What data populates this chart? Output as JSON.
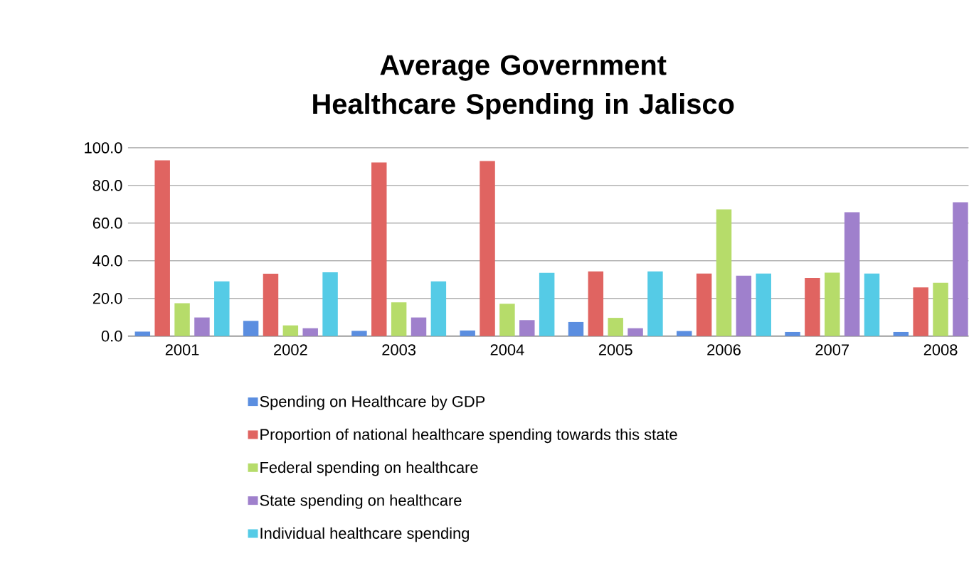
{
  "chart_data": {
    "type": "bar",
    "title": "Average Government Healthcare Spending in Jalisco",
    "categories": [
      "2001",
      "2002",
      "2003",
      "2004",
      "2005",
      "2006",
      "2007",
      "2008"
    ],
    "series": [
      {
        "name": "Spending on Healthcare by GDP",
        "color": "#5b8ee0",
        "values": [
          2.4,
          8.1,
          2.8,
          3.0,
          7.5,
          2.7,
          2.2,
          2.2
        ]
      },
      {
        "name": "Proportion of national healthcare spending towards this state",
        "color": "#e06461",
        "values": [
          93.4,
          33.1,
          92.2,
          93.0,
          34.4,
          33.2,
          30.9,
          25.9
        ]
      },
      {
        "name": "Federal spending on healthcare",
        "color": "#b6dc6a",
        "values": [
          17.5,
          5.7,
          17.9,
          17.2,
          9.7,
          67.3,
          33.7,
          28.3
        ]
      },
      {
        "name": "State spending on healthcare",
        "color": "#9f80cc",
        "values": [
          9.9,
          4.2,
          9.9,
          8.5,
          4.2,
          32.1,
          65.8,
          71.1
        ]
      },
      {
        "name": "Individual healthcare spending",
        "color": "#55cbe6",
        "values": [
          29.1,
          33.9,
          29.1,
          33.6,
          34.4,
          33.2,
          33.2,
          null
        ]
      }
    ],
    "ylim": [
      0,
      100
    ],
    "yticks": [
      {
        "value": 0,
        "label": "0.0"
      },
      {
        "value": 20,
        "label": "20.0"
      },
      {
        "value": 40,
        "label": "40.0"
      },
      {
        "value": 60,
        "label": "60.0"
      },
      {
        "value": 80,
        "label": "80.0"
      },
      {
        "value": 100,
        "label": "100.0"
      }
    ],
    "grid": "y",
    "legend": "bottom"
  }
}
